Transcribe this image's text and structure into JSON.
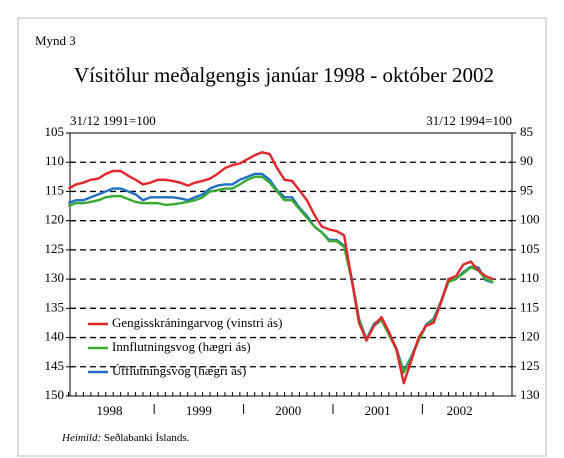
{
  "chart_data": {
    "type": "line",
    "figure_label": "Mynd 3",
    "title": "Vísitölur meðalgengis janúar 1998 - október 2002",
    "y_label": "31/12 1991=100",
    "y2_label": "31/12 1994=100",
    "source_label": "Heimild:",
    "source": "Seðlabanki Íslands.",
    "categories": [
      null,
      null,
      null,
      null,
      null,
      null,
      "1998",
      null,
      null,
      null,
      null,
      null,
      null,
      null,
      null,
      null,
      null,
      null,
      "1999",
      null,
      null,
      null,
      null,
      null,
      null,
      null,
      null,
      null,
      null,
      null,
      "2000",
      null,
      null,
      null,
      null,
      null,
      null,
      null,
      null,
      null,
      null,
      null,
      "2001",
      null,
      null,
      null,
      null,
      null,
      null,
      null,
      null,
      null,
      null,
      "2002",
      null,
      null,
      null,
      null
    ],
    "ylim": [
      150,
      105
    ],
    "yticks": [
      105,
      110,
      115,
      120,
      125,
      130,
      135,
      140,
      145,
      150
    ],
    "y2lim": [
      130,
      85
    ],
    "y2ticks": [
      85,
      90,
      95,
      100,
      105,
      110,
      115,
      120,
      125,
      130
    ],
    "grid": true,
    "legend": "lower left",
    "series": [
      {
        "name": "Gengisskráningarvog (vinstri ás)",
        "color": "#e3262b",
        "axis": "y",
        "values": [
          114.5,
          113.8,
          113.5,
          113,
          112.8,
          112,
          111.5,
          111.5,
          112.3,
          113,
          113.8,
          113.5,
          113,
          113,
          113.2,
          113.5,
          114,
          113.5,
          113.2,
          112.8,
          112,
          111,
          110.5,
          110.2,
          109.5,
          108.8,
          108.3,
          108.6,
          111,
          113,
          113.2,
          114.8,
          116.5,
          119,
          121,
          121.5,
          121.8,
          122.5,
          130,
          137.5,
          140.5,
          138,
          136.5,
          139,
          142,
          147.8,
          144,
          140,
          138,
          137.5,
          134,
          130,
          129.5,
          127.5,
          127,
          128.5,
          129.5,
          130
        ]
      },
      {
        "name": "Innflutningsvog (hægri ás)",
        "color": "#3aaa35",
        "axis": "y2",
        "values": [
          97.5,
          97,
          97,
          96.8,
          96.5,
          96,
          95.8,
          95.8,
          96.3,
          96.8,
          97,
          97,
          97,
          97.3,
          97.2,
          97,
          96.8,
          96.5,
          96,
          95,
          94.8,
          94.5,
          94.5,
          93.8,
          93,
          92.5,
          92.5,
          93.5,
          95,
          96.5,
          96.5,
          98,
          99.5,
          101,
          102,
          103.5,
          103.5,
          104.5,
          110,
          117,
          120.5,
          118,
          117,
          119.5,
          122,
          126,
          123.5,
          120.5,
          118,
          117,
          114,
          110.5,
          110,
          109,
          108,
          108.5,
          110,
          110.5
        ]
      },
      {
        "name": "Útflutningsvog (hægri ás)",
        "color": "#1f6fc4",
        "axis": "y2",
        "values": [
          97,
          96.5,
          96.5,
          96,
          95.5,
          95,
          94.5,
          94.5,
          95,
          95.5,
          96.5,
          96,
          96,
          96,
          96,
          96.2,
          96.5,
          96,
          95.5,
          94.5,
          94,
          93.8,
          93.8,
          93,
          92.5,
          92,
          92,
          93,
          94.8,
          96,
          96,
          97.8,
          99.2,
          101,
          102,
          103.3,
          103.3,
          104.3,
          109.8,
          116.8,
          120.3,
          117.7,
          116.7,
          119.2,
          121.8,
          125.8,
          123.3,
          120.3,
          117.8,
          116.8,
          113.8,
          110.4,
          110,
          108.8,
          107.9,
          108,
          110.2,
          110.6
        ]
      }
    ]
  }
}
